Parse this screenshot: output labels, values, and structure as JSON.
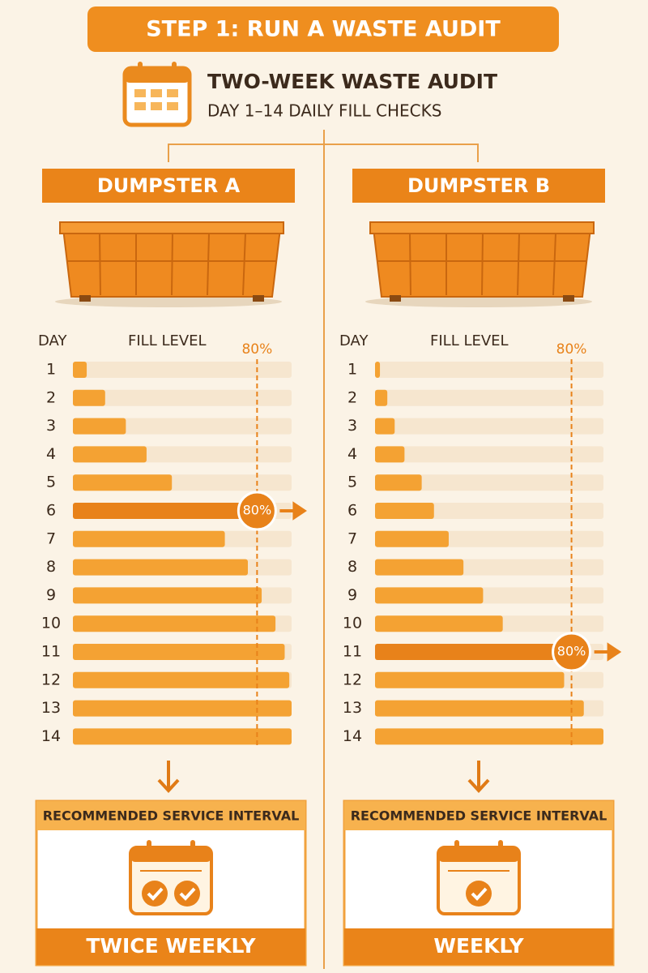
{
  "header": {
    "title": "STEP 1: RUN A WASTE AUDIT",
    "subtitle": "TWO-WEEK WASTE AUDIT",
    "caption": "DAY 1–14 DAILY FILL CHECKS"
  },
  "chart_data": [
    {
      "type": "bar",
      "title": "DUMPSTER A",
      "x_label": "FILL LEVEL",
      "y_label": "DAY",
      "categories": [
        "1",
        "2",
        "3",
        "4",
        "5",
        "6",
        "7",
        "8",
        "9",
        "10",
        "11",
        "12",
        "13",
        "14"
      ],
      "values": [
        6,
        14,
        23,
        32,
        43,
        80,
        66,
        76,
        82,
        88,
        92,
        94,
        95,
        95
      ],
      "xlim": [
        0,
        95
      ],
      "threshold": {
        "value": 80,
        "label": "80%"
      },
      "color": "#f4a233",
      "highlight_color": "#e8821a",
      "recommendation": {
        "title": "RECOMMENDED SERVICE INTERVAL",
        "interval": "TWICE WEEKLY"
      }
    },
    {
      "type": "bar",
      "title": "DUMPSTER B",
      "x_label": "FILL LEVEL",
      "y_label": "DAY",
      "categories": [
        "1",
        "2",
        "3",
        "4",
        "5",
        "6",
        "7",
        "8",
        "9",
        "10",
        "11",
        "12",
        "13",
        "14"
      ],
      "values": [
        2,
        5,
        8,
        12,
        19,
        24,
        30,
        36,
        44,
        52,
        80,
        77,
        85,
        93
      ],
      "xlim": [
        0,
        93
      ],
      "threshold": {
        "value": 80,
        "label": "80%"
      },
      "color": "#f4a233",
      "highlight_color": "#e8821a",
      "recommendation": {
        "title": "RECOMMENDED SERVICE INTERVAL",
        "interval": "WEEKLY"
      }
    }
  ]
}
